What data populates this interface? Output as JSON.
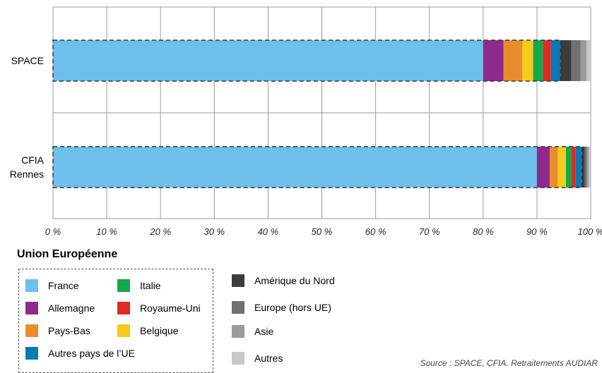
{
  "chart_data": {
    "type": "bar",
    "orientation": "horizontal",
    "stacked": true,
    "percent": true,
    "categories": [
      "SPACE",
      "CFIA\nRennes"
    ],
    "xlim": [
      0,
      100
    ],
    "x_ticks": [
      "0 %",
      "10 %",
      "20 %",
      "30 %",
      "40 %",
      "50 %",
      "60 %",
      "70 %",
      "80 %",
      "90 %",
      "100 %"
    ],
    "grid": true,
    "series": [
      {
        "name": "France",
        "color": "#6cc0eb",
        "values": [
          80.0,
          90.0
        ],
        "group": "eu"
      },
      {
        "name": "Allemagne",
        "color": "#8e2a8e",
        "values": [
          3.8,
          2.4
        ],
        "group": "eu"
      },
      {
        "name": "Pays-Bas",
        "color": "#ea8c2c",
        "values": [
          3.5,
          1.5
        ],
        "group": "eu"
      },
      {
        "name": "Belgique",
        "color": "#f4cb1c",
        "values": [
          2.0,
          1.5
        ],
        "group": "eu"
      },
      {
        "name": "Italie",
        "color": "#13a84a",
        "values": [
          1.8,
          1.0
        ],
        "group": "eu"
      },
      {
        "name": "Royaume-Uni",
        "color": "#dd2a23",
        "values": [
          1.5,
          0.8
        ],
        "group": "eu"
      },
      {
        "name": "Autres pays de l’UE",
        "color": "#0c78b4",
        "values": [
          1.8,
          1.2
        ],
        "group": "eu"
      },
      {
        "name": "Amérique du Nord",
        "color": "#3c3c3c",
        "values": [
          2.0,
          0.5
        ],
        "group": "other"
      },
      {
        "name": "Europe (hors UE)",
        "color": "#707070",
        "values": [
          1.7,
          0.4
        ],
        "group": "other"
      },
      {
        "name": "Asie",
        "color": "#9a9a9a",
        "values": [
          1.1,
          0.3
        ],
        "group": "other"
      },
      {
        "name": "Autres",
        "color": "#c8c8c8",
        "values": [
          0.8,
          0.4
        ],
        "group": "other"
      }
    ],
    "legend_title": "Union Européenne",
    "source": "Source : SPACE, CFIA. Retraitements AUDIAR"
  }
}
